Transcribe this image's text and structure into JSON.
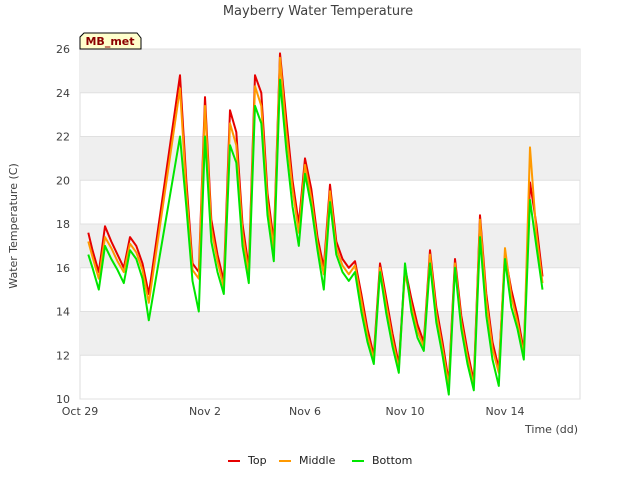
{
  "colors": {
    "Top": "#e60000",
    "Middle": "#ff9900",
    "Bottom": "#00e600"
  },
  "chart_data": {
    "type": "line",
    "title": "Mayberry Water Temperature",
    "xlabel": "Time (dd)",
    "ylabel": "Water Temperature (C)",
    "badge": "MB_met",
    "x_unit": "date (Oct 29 - Nov 16)",
    "xlim": [
      "Oct 29",
      "Nov 17"
    ],
    "ylim": [
      10,
      26
    ],
    "yticks": [
      10,
      12,
      14,
      16,
      18,
      20,
      22,
      24,
      26
    ],
    "xtick_labels": [
      "Oct 29",
      "Nov 2",
      "Nov 6",
      "Nov 10",
      "Nov 14"
    ],
    "grid": "horizontal bands",
    "legend": "bottom-center",
    "series": [
      {
        "name": "Top",
        "x": [
          "Oct 29 08:00",
          "Oct 29 12:00",
          "Oct 29 18:00",
          "Oct 30 00:00",
          "Oct 30 06:00",
          "Oct 30 12:00",
          "Oct 30 18:00",
          "Oct 31 00:00",
          "Oct 31 06:00",
          "Oct 31 12:00",
          "Oct 31 18:00",
          "Nov 1 00:00",
          "Nov 1 06:00",
          "Nov 1 12:00",
          "Nov 1 18:00",
          "Nov 2 00:00",
          "Nov 2 06:00",
          "Nov 2 12:00",
          "Nov 2 18:00",
          "Nov 3 00:00",
          "Nov 3 06:00",
          "Nov 3 12:00",
          "Nov 3 18:00",
          "Nov 4 00:00",
          "Nov 4 06:00",
          "Nov 4 12:00",
          "Nov 4 18:00",
          "Nov 5 00:00",
          "Nov 5 06:00",
          "Nov 5 12:00",
          "Nov 5 18:00",
          "Nov 6 00:00",
          "Nov 6 06:00",
          "Nov 6 12:00",
          "Nov 6 18:00",
          "Nov 7 00:00",
          "Nov 7 06:00",
          "Nov 7 12:00",
          "Nov 7 18:00",
          "Nov 8 00:00",
          "Nov 8 06:00",
          "Nov 8 12:00",
          "Nov 8 18:00",
          "Nov 9 00:00",
          "Nov 9 06:00",
          "Nov 9 12:00",
          "Nov 9 18:00",
          "Nov 10 00:00",
          "Nov 10 06:00",
          "Nov 10 12:00",
          "Nov 10 18:00",
          "Nov 11 00:00",
          "Nov 11 06:00",
          "Nov 11 12:00",
          "Nov 11 18:00",
          "Nov 12 00:00",
          "Nov 12 06:00",
          "Nov 12 12:00",
          "Nov 12 18:00",
          "Nov 13 00:00",
          "Nov 13 06:00",
          "Nov 13 12:00",
          "Nov 13 18:00",
          "Nov 14 00:00",
          "Nov 14 06:00",
          "Nov 14 12:00",
          "Nov 14 18:00",
          "Nov 15 00:00",
          "Nov 15 06:00",
          "Nov 15 12:00"
        ],
        "y": [
          17.6,
          16.8,
          15.8,
          17.9,
          17.2,
          16.6,
          16.0,
          17.4,
          17.0,
          16.2,
          14.8,
          24.8,
          20.0,
          16.2,
          15.8,
          23.8,
          18.2,
          16.6,
          15.4,
          23.2,
          22.2,
          18.0,
          16.0,
          24.8,
          24.0,
          19.4,
          17.2,
          25.8,
          22.8,
          20.0,
          18.0,
          21.0,
          19.6,
          17.4,
          16.0,
          19.8,
          17.2,
          16.4,
          16.0,
          16.3,
          14.8,
          13.2,
          12.0,
          16.2,
          14.6,
          13.0,
          11.6,
          16.0,
          14.6,
          13.4,
          12.6,
          16.8,
          14.2,
          12.6,
          10.8,
          16.4,
          13.8,
          12.2,
          10.8,
          18.4,
          14.8,
          12.6,
          11.4,
          16.6,
          15.0,
          13.8,
          12.2,
          19.9,
          18.0,
          15.6
        ]
      },
      {
        "name": "Middle",
        "x": [
          "Oct 29 08:00",
          "Oct 29 12:00",
          "Oct 29 18:00",
          "Oct 30 00:00",
          "Oct 30 06:00",
          "Oct 30 12:00",
          "Oct 30 18:00",
          "Oct 31 00:00",
          "Oct 31 06:00",
          "Oct 31 12:00",
          "Oct 31 18:00",
          "Nov 1 00:00",
          "Nov 1 06:00",
          "Nov 1 12:00",
          "Nov 1 18:00",
          "Nov 2 00:00",
          "Nov 2 06:00",
          "Nov 2 12:00",
          "Nov 2 18:00",
          "Nov 3 00:00",
          "Nov 3 06:00",
          "Nov 3 12:00",
          "Nov 3 18:00",
          "Nov 4 00:00",
          "Nov 4 06:00",
          "Nov 4 12:00",
          "Nov 4 18:00",
          "Nov 5 00:00",
          "Nov 5 06:00",
          "Nov 5 12:00",
          "Nov 5 18:00",
          "Nov 6 00:00",
          "Nov 6 06:00",
          "Nov 6 12:00",
          "Nov 6 18:00",
          "Nov 7 00:00",
          "Nov 7 06:00",
          "Nov 7 12:00",
          "Nov 7 18:00",
          "Nov 8 00:00",
          "Nov 8 06:00",
          "Nov 8 12:00",
          "Nov 8 18:00",
          "Nov 9 00:00",
          "Nov 9 06:00",
          "Nov 9 12:00",
          "Nov 9 18:00",
          "Nov 10 00:00",
          "Nov 10 06:00",
          "Nov 10 12:00",
          "Nov 10 18:00",
          "Nov 11 00:00",
          "Nov 11 06:00",
          "Nov 11 12:00",
          "Nov 11 18:00",
          "Nov 12 00:00",
          "Nov 12 06:00",
          "Nov 12 12:00",
          "Nov 12 18:00",
          "Nov 13 00:00",
          "Nov 13 06:00",
          "Nov 13 12:00",
          "Nov 13 18:00",
          "Nov 14 00:00",
          "Nov 14 06:00",
          "Nov 14 12:00",
          "Nov 14 18:00",
          "Nov 15 00:00",
          "Nov 15 06:00",
          "Nov 15 12:00"
        ],
        "y": [
          17.2,
          16.5,
          15.5,
          17.4,
          16.9,
          16.3,
          15.8,
          17.1,
          16.7,
          15.9,
          14.4,
          24.2,
          19.5,
          15.9,
          15.5,
          23.4,
          17.8,
          16.3,
          15.1,
          22.6,
          21.6,
          17.6,
          15.7,
          24.3,
          23.4,
          19.0,
          16.9,
          25.6,
          22.2,
          19.6,
          17.6,
          20.7,
          19.2,
          17.1,
          15.7,
          19.5,
          16.9,
          16.1,
          15.7,
          16.1,
          14.5,
          12.9,
          11.8,
          16.0,
          14.3,
          12.7,
          11.4,
          15.8,
          14.3,
          13.1,
          12.4,
          16.6,
          13.9,
          12.3,
          10.6,
          16.2,
          13.5,
          11.9,
          10.6,
          18.2,
          14.5,
          12.3,
          11.2,
          16.9,
          14.7,
          13.5,
          12.0,
          21.5,
          17.6,
          15.3
        ]
      },
      {
        "name": "Bottom",
        "x": [
          "Oct 29 08:00",
          "Oct 29 12:00",
          "Oct 29 18:00",
          "Oct 30 00:00",
          "Oct 30 06:00",
          "Oct 30 12:00",
          "Oct 30 18:00",
          "Oct 31 00:00",
          "Oct 31 06:00",
          "Oct 31 12:00",
          "Oct 31 18:00",
          "Nov 1 00:00",
          "Nov 1 06:00",
          "Nov 1 12:00",
          "Nov 1 18:00",
          "Nov 2 00:00",
          "Nov 2 06:00",
          "Nov 2 12:00",
          "Nov 2 18:00",
          "Nov 3 00:00",
          "Nov 3 06:00",
          "Nov 3 12:00",
          "Nov 3 18:00",
          "Nov 4 00:00",
          "Nov 4 06:00",
          "Nov 4 12:00",
          "Nov 4 18:00",
          "Nov 5 00:00",
          "Nov 5 06:00",
          "Nov 5 12:00",
          "Nov 5 18:00",
          "Nov 6 00:00",
          "Nov 6 06:00",
          "Nov 6 12:00",
          "Nov 6 18:00",
          "Nov 7 00:00",
          "Nov 7 06:00",
          "Nov 7 12:00",
          "Nov 7 18:00",
          "Nov 8 00:00",
          "Nov 8 06:00",
          "Nov 8 12:00",
          "Nov 8 18:00",
          "Nov 9 00:00",
          "Nov 9 06:00",
          "Nov 9 12:00",
          "Nov 9 18:00",
          "Nov 10 00:00",
          "Nov 10 06:00",
          "Nov 10 12:00",
          "Nov 10 18:00",
          "Nov 11 00:00",
          "Nov 11 06:00",
          "Nov 11 12:00",
          "Nov 11 18:00",
          "Nov 12 00:00",
          "Nov 12 06:00",
          "Nov 12 12:00",
          "Nov 12 18:00",
          "Nov 13 00:00",
          "Nov 13 06:00",
          "Nov 13 12:00",
          "Nov 13 18:00",
          "Nov 14 00:00",
          "Nov 14 06:00",
          "Nov 14 12:00",
          "Nov 14 18:00",
          "Nov 15 00:00",
          "Nov 15 06:00",
          "Nov 15 12:00"
        ],
        "y": [
          16.6,
          16.0,
          15.0,
          17.0,
          16.4,
          15.9,
          15.3,
          16.8,
          16.4,
          15.5,
          13.6,
          22.0,
          18.8,
          15.4,
          14.0,
          22.0,
          17.2,
          15.8,
          14.8,
          21.6,
          20.8,
          17.0,
          15.3,
          23.4,
          22.6,
          18.4,
          16.3,
          24.6,
          21.4,
          18.8,
          17.0,
          20.3,
          18.8,
          16.8,
          15.0,
          19.0,
          16.6,
          15.8,
          15.4,
          15.8,
          14.0,
          12.6,
          11.6,
          15.8,
          13.9,
          12.4,
          11.2,
          16.2,
          14.0,
          12.8,
          12.2,
          16.2,
          13.5,
          12.0,
          10.2,
          16.0,
          13.2,
          11.6,
          10.4,
          17.4,
          13.8,
          11.8,
          10.6,
          16.4,
          14.2,
          13.2,
          11.8,
          19.1,
          17.0,
          15.0
        ]
      }
    ]
  }
}
